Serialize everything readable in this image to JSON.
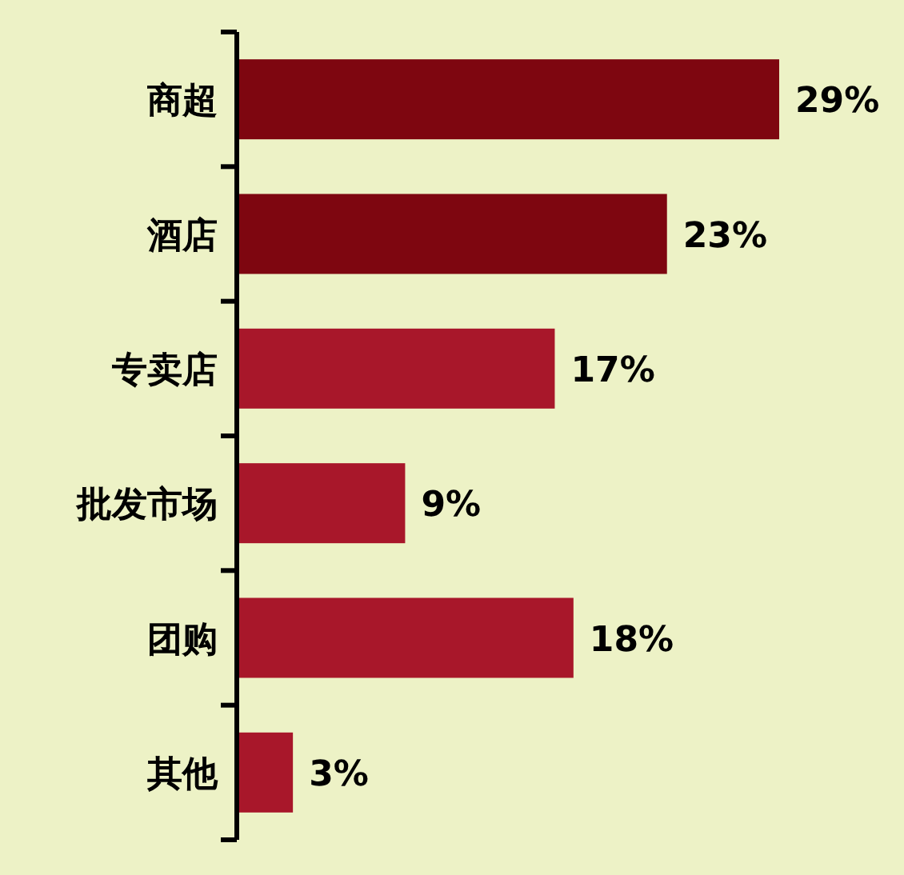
{
  "chart_data": {
    "type": "bar",
    "orientation": "horizontal",
    "categories": [
      "商超",
      "酒店",
      "专卖店",
      "批发市场",
      "团购",
      "其他"
    ],
    "values": [
      29,
      23,
      17,
      9,
      18,
      3
    ],
    "colors": [
      "#7e0610",
      "#7e0610",
      "#a8172a",
      "#a8172a",
      "#a8172a",
      "#a8172a"
    ],
    "value_labels": [
      "29%",
      "23%",
      "17%",
      "9%",
      "18%",
      "3%"
    ]
  }
}
